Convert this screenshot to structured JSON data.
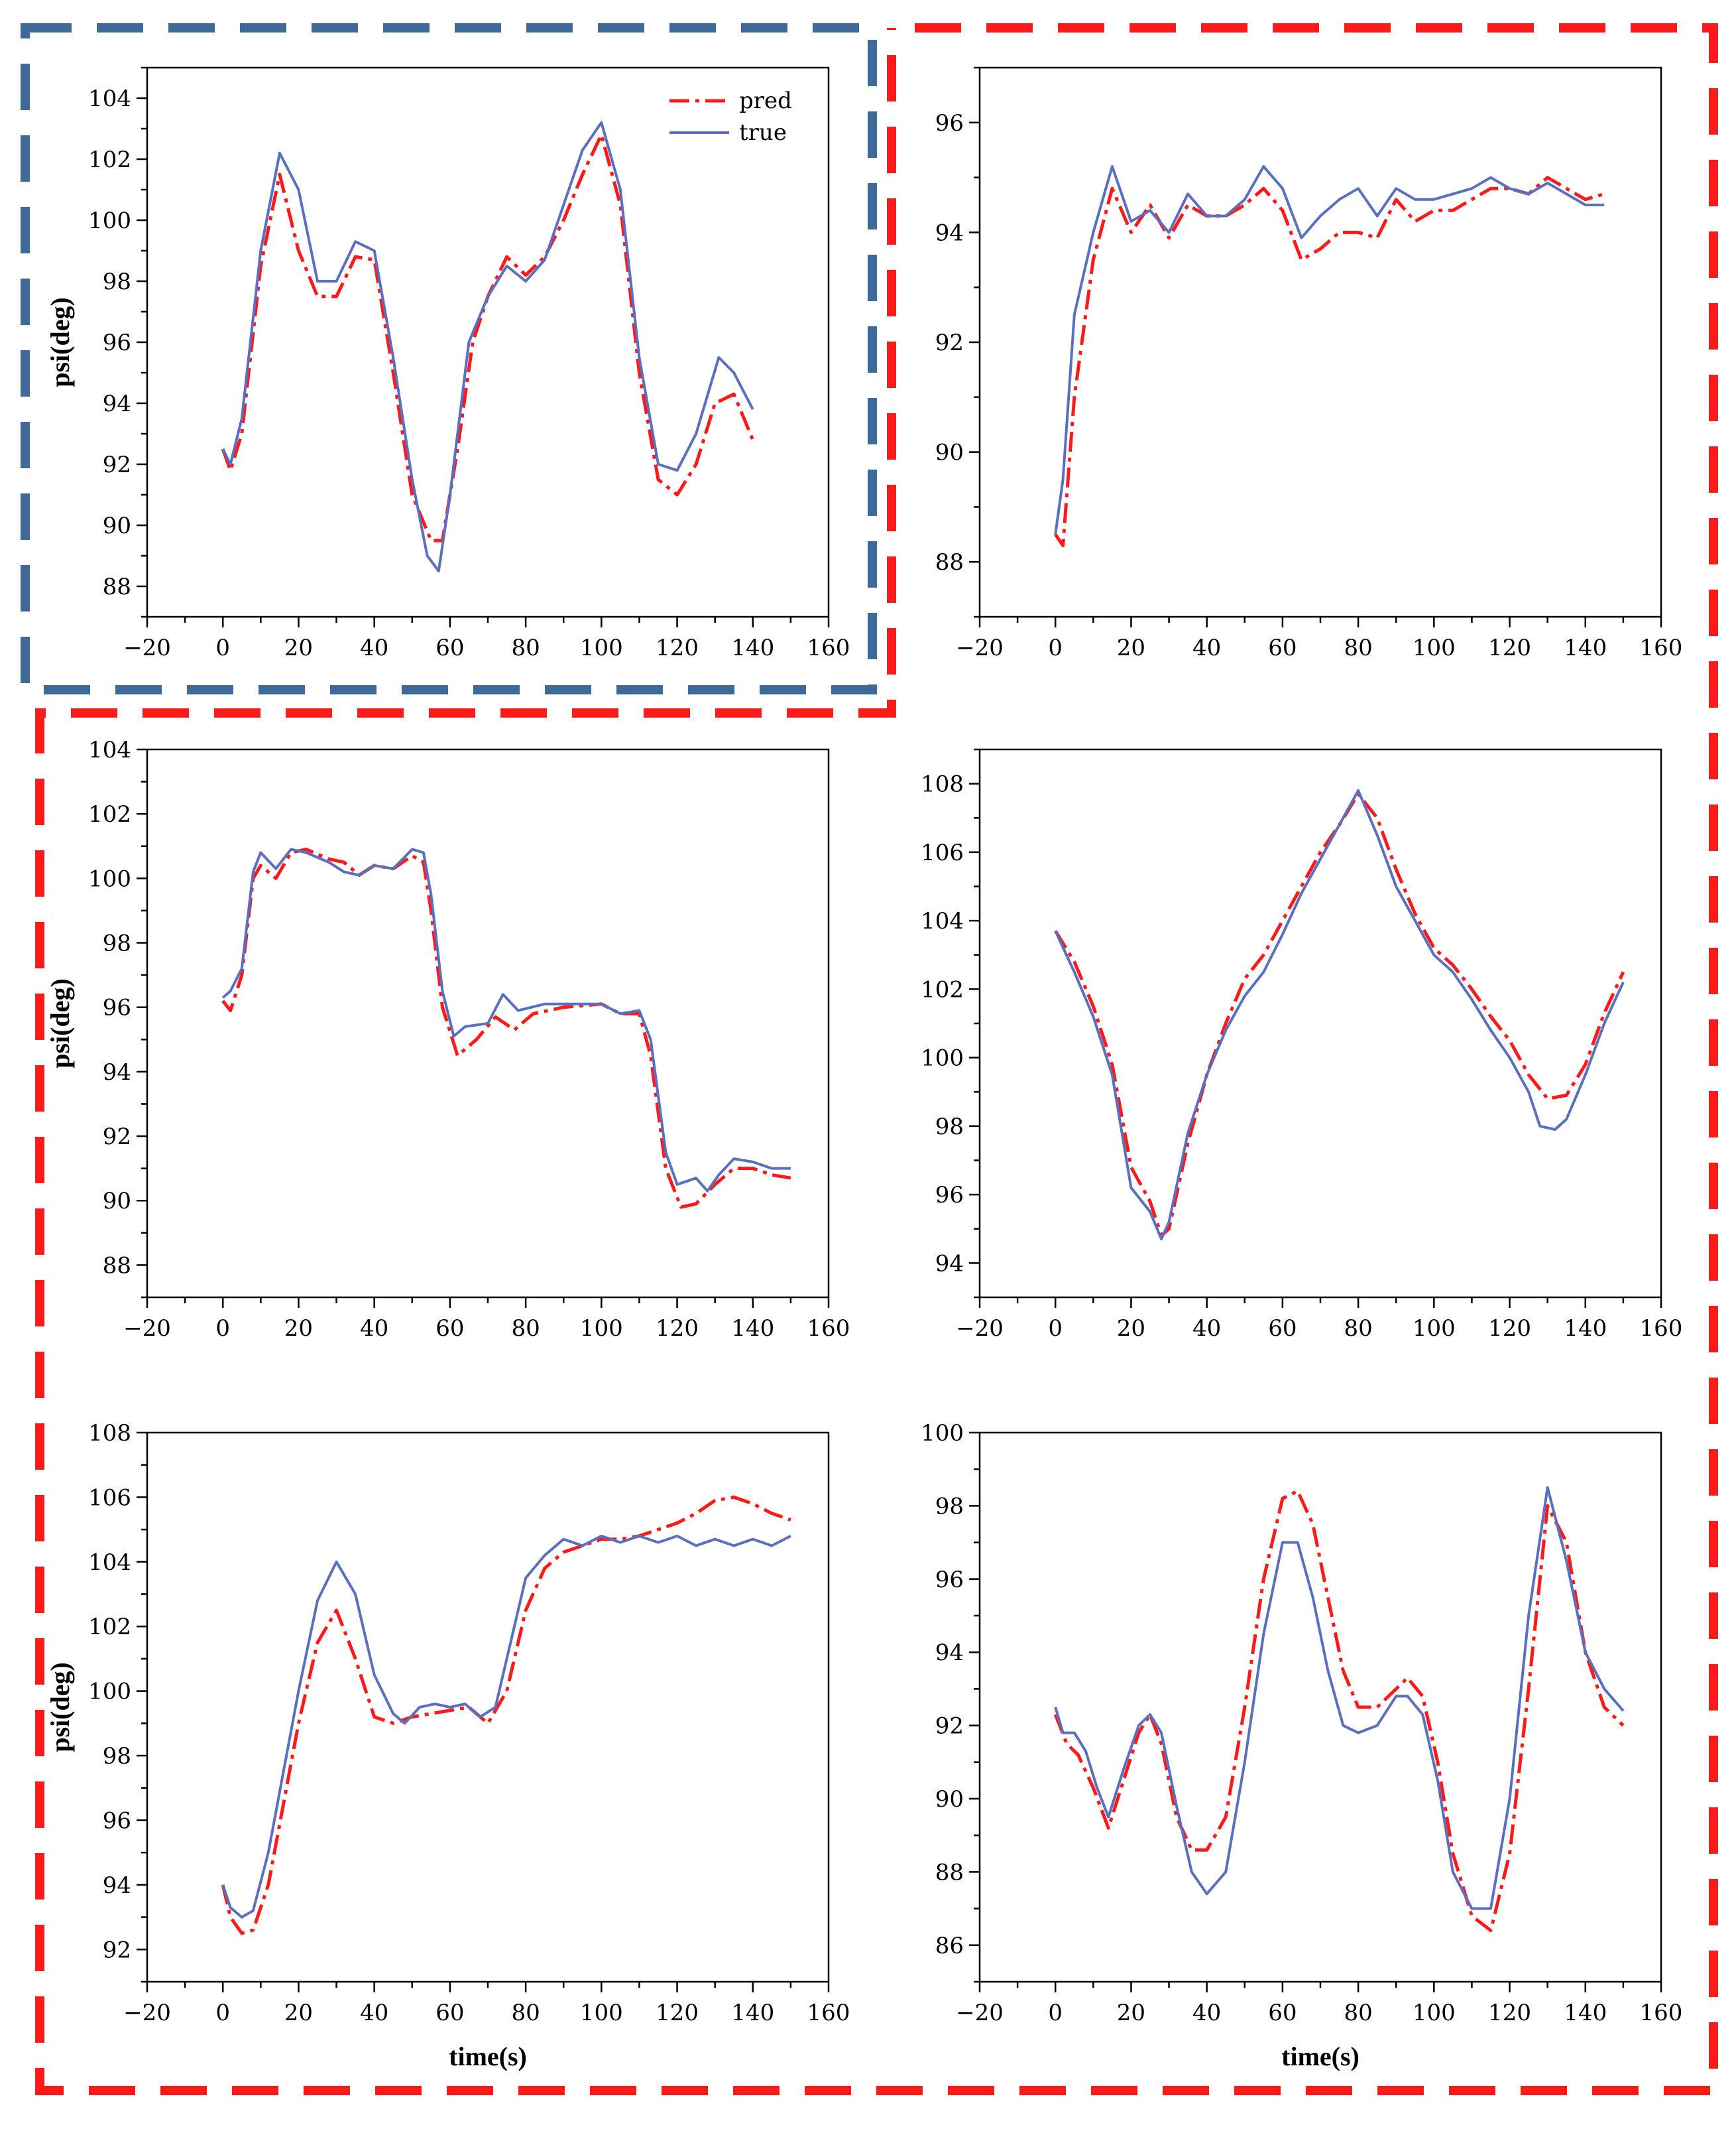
{
  "colors": {
    "pred": "#ff1a1a",
    "true": "#5a6fc0",
    "box_blue": "#3d6a99",
    "box_red": "#ff1a1a"
  },
  "legend": {
    "pred_label": "pred",
    "true_label": "true"
  },
  "chart_data": [
    {
      "type": "line",
      "xlabel": "",
      "ylabel": "psi(deg)",
      "xlim": [
        -20,
        160
      ],
      "ylim": [
        87,
        105
      ],
      "xticks": [
        -20,
        0,
        20,
        40,
        60,
        80,
        100,
        120,
        140,
        160
      ],
      "yticks": [
        88,
        90,
        92,
        94,
        96,
        98,
        100,
        102,
        104
      ],
      "legend": "top-right",
      "series": [
        {
          "name": "pred",
          "x": [
            0,
            2,
            5,
            10,
            15,
            20,
            25,
            30,
            35,
            40,
            45,
            50,
            55,
            58,
            62,
            66,
            70,
            75,
            80,
            85,
            90,
            95,
            100,
            105,
            110,
            115,
            120,
            125,
            130,
            135,
            140
          ],
          "y": [
            92.5,
            91.8,
            93.0,
            98.5,
            101.5,
            99.0,
            97.5,
            97.5,
            98.8,
            98.7,
            95.0,
            91.0,
            89.5,
            89.5,
            92.5,
            96.0,
            97.5,
            98.8,
            98.2,
            98.8,
            100.0,
            101.5,
            102.8,
            100.5,
            95.0,
            91.5,
            91.0,
            92.0,
            94.0,
            94.3,
            92.8
          ]
        },
        {
          "name": "true",
          "x": [
            0,
            2,
            5,
            10,
            15,
            20,
            25,
            30,
            35,
            40,
            45,
            50,
            54,
            57,
            60,
            65,
            70,
            75,
            80,
            85,
            90,
            95,
            100,
            105,
            110,
            115,
            120,
            125,
            131,
            135,
            140
          ],
          "y": [
            92.5,
            92.0,
            93.5,
            99.0,
            102.2,
            101.0,
            98.0,
            98.0,
            99.3,
            99.0,
            95.5,
            91.5,
            89.0,
            88.5,
            91.0,
            96.0,
            97.5,
            98.5,
            98.0,
            98.7,
            100.5,
            102.3,
            103.2,
            101.0,
            95.5,
            92.0,
            91.8,
            93.0,
            95.5,
            95.0,
            93.8
          ]
        }
      ]
    },
    {
      "type": "line",
      "xlabel": "",
      "ylabel": "",
      "xlim": [
        -20,
        160
      ],
      "ylim": [
        87,
        97
      ],
      "xticks": [
        -20,
        0,
        20,
        40,
        60,
        80,
        100,
        120,
        140,
        160
      ],
      "yticks": [
        88,
        90,
        92,
        94,
        96
      ],
      "series": [
        {
          "name": "pred",
          "x": [
            0,
            2,
            5,
            10,
            15,
            20,
            25,
            30,
            35,
            40,
            45,
            50,
            55,
            60,
            65,
            70,
            75,
            80,
            85,
            90,
            95,
            100,
            105,
            110,
            115,
            120,
            125,
            130,
            135,
            140,
            145
          ],
          "y": [
            88.5,
            88.3,
            91.0,
            93.5,
            94.8,
            94.0,
            94.5,
            93.9,
            94.5,
            94.3,
            94.3,
            94.5,
            94.8,
            94.4,
            93.5,
            93.7,
            94.0,
            94.0,
            93.9,
            94.6,
            94.2,
            94.4,
            94.4,
            94.6,
            94.8,
            94.8,
            94.7,
            95.0,
            94.8,
            94.6,
            94.7
          ]
        },
        {
          "name": "true",
          "x": [
            0,
            2,
            5,
            10,
            15,
            20,
            25,
            30,
            35,
            40,
            45,
            50,
            55,
            60,
            65,
            70,
            75,
            80,
            85,
            90,
            95,
            100,
            105,
            110,
            115,
            120,
            125,
            130,
            135,
            140,
            145
          ],
          "y": [
            88.5,
            89.5,
            92.5,
            94.0,
            95.2,
            94.2,
            94.4,
            94.0,
            94.7,
            94.3,
            94.3,
            94.6,
            95.2,
            94.8,
            93.9,
            94.3,
            94.6,
            94.8,
            94.3,
            94.8,
            94.6,
            94.6,
            94.7,
            94.8,
            95.0,
            94.8,
            94.7,
            94.9,
            94.7,
            94.5,
            94.5
          ]
        }
      ]
    },
    {
      "type": "line",
      "xlabel": "",
      "ylabel": "psi(deg)",
      "xlim": [
        -20,
        160
      ],
      "ylim": [
        87,
        104
      ],
      "xticks": [
        -20,
        0,
        20,
        40,
        60,
        80,
        100,
        120,
        140,
        160
      ],
      "yticks": [
        88,
        90,
        92,
        94,
        96,
        98,
        100,
        102,
        104
      ],
      "series": [
        {
          "name": "pred",
          "x": [
            0,
            2,
            5,
            8,
            10,
            14,
            18,
            22,
            28,
            32,
            36,
            40,
            45,
            50,
            53,
            55,
            58,
            62,
            67,
            72,
            77,
            82,
            90,
            100,
            105,
            110,
            113,
            117,
            121,
            125,
            130,
            135,
            140,
            145,
            150
          ],
          "y": [
            96.2,
            95.9,
            97.0,
            100.0,
            100.4,
            100.0,
            100.8,
            100.9,
            100.6,
            100.5,
            100.1,
            100.4,
            100.3,
            100.7,
            100.5,
            99.0,
            96.0,
            94.5,
            95.0,
            95.7,
            95.3,
            95.8,
            96.0,
            96.1,
            95.8,
            95.8,
            94.5,
            91.0,
            89.8,
            89.9,
            90.5,
            91.0,
            91.0,
            90.8,
            90.7
          ]
        },
        {
          "name": "true",
          "x": [
            0,
            2,
            5,
            8,
            10,
            14,
            18,
            22,
            28,
            32,
            36,
            40,
            45,
            50,
            53,
            55,
            58,
            61,
            64,
            70,
            74,
            78,
            85,
            95,
            100,
            105,
            110,
            113,
            117,
            120,
            125,
            128,
            131,
            135,
            140,
            145,
            150
          ],
          "y": [
            96.3,
            96.5,
            97.2,
            100.2,
            100.8,
            100.3,
            100.9,
            100.8,
            100.5,
            100.2,
            100.1,
            100.4,
            100.3,
            100.9,
            100.8,
            99.5,
            96.5,
            95.1,
            95.4,
            95.5,
            96.4,
            95.9,
            96.1,
            96.1,
            96.1,
            95.8,
            95.9,
            95.0,
            91.5,
            90.5,
            90.7,
            90.3,
            90.8,
            91.3,
            91.2,
            91.0,
            91.0
          ]
        }
      ]
    },
    {
      "type": "line",
      "xlabel": "",
      "ylabel": "",
      "xlim": [
        -20,
        160
      ],
      "ylim": [
        93,
        109
      ],
      "xticks": [
        -20,
        0,
        20,
        40,
        60,
        80,
        100,
        120,
        140,
        160
      ],
      "yticks": [
        94,
        96,
        98,
        100,
        102,
        104,
        106,
        108
      ],
      "series": [
        {
          "name": "pred",
          "x": [
            0,
            5,
            10,
            15,
            20,
            25,
            28,
            30,
            35,
            40,
            45,
            50,
            55,
            60,
            65,
            70,
            75,
            80,
            85,
            90,
            95,
            100,
            105,
            110,
            115,
            120,
            125,
            130,
            135,
            140,
            145,
            150
          ],
          "y": [
            103.7,
            102.8,
            101.5,
            99.8,
            96.8,
            95.8,
            94.8,
            95.0,
            97.5,
            99.5,
            101.0,
            102.3,
            103.0,
            104.0,
            105.0,
            106.0,
            106.8,
            107.7,
            107.0,
            105.5,
            104.2,
            103.2,
            102.7,
            102.0,
            101.2,
            100.5,
            99.5,
            98.8,
            98.9,
            99.8,
            101.3,
            102.5
          ]
        },
        {
          "name": "true",
          "x": [
            0,
            5,
            10,
            15,
            20,
            25,
            28,
            30,
            35,
            40,
            45,
            50,
            55,
            60,
            65,
            70,
            75,
            80,
            85,
            90,
            95,
            100,
            105,
            110,
            115,
            120,
            125,
            128,
            132,
            135,
            140,
            145,
            150
          ],
          "y": [
            103.7,
            102.5,
            101.2,
            99.5,
            96.2,
            95.5,
            94.7,
            95.2,
            97.8,
            99.5,
            100.8,
            101.8,
            102.5,
            103.6,
            104.8,
            105.8,
            106.8,
            107.8,
            106.5,
            105.0,
            104.0,
            103.0,
            102.5,
            101.7,
            100.8,
            100.0,
            99.0,
            98.0,
            97.9,
            98.2,
            99.5,
            101.0,
            102.2
          ]
        }
      ]
    },
    {
      "type": "line",
      "xlabel": "time(s)",
      "ylabel": "psi(deg)",
      "xlim": [
        -20,
        160
      ],
      "ylim": [
        91,
        108
      ],
      "xticks": [
        -20,
        0,
        20,
        40,
        60,
        80,
        100,
        120,
        140,
        160
      ],
      "yticks": [
        92,
        94,
        96,
        98,
        100,
        102,
        104,
        106,
        108
      ],
      "series": [
        {
          "name": "pred",
          "x": [
            0,
            2,
            5,
            8,
            12,
            16,
            20,
            25,
            30,
            35,
            40,
            45,
            50,
            55,
            60,
            65,
            70,
            75,
            80,
            85,
            90,
            95,
            100,
            105,
            110,
            115,
            120,
            125,
            130,
            135,
            140,
            145,
            150
          ],
          "y": [
            94.0,
            93.0,
            92.5,
            92.6,
            94.0,
            96.5,
            99.0,
            101.5,
            102.5,
            101.0,
            99.2,
            99.0,
            99.2,
            99.3,
            99.4,
            99.5,
            99.0,
            100.0,
            102.5,
            103.8,
            104.3,
            104.5,
            104.7,
            104.7,
            104.8,
            105.0,
            105.2,
            105.5,
            105.9,
            106.0,
            105.8,
            105.5,
            105.3
          ]
        },
        {
          "name": "true",
          "x": [
            0,
            2,
            5,
            8,
            12,
            16,
            20,
            25,
            30,
            35,
            40,
            45,
            48,
            52,
            56,
            60,
            64,
            68,
            72,
            76,
            80,
            85,
            90,
            95,
            100,
            105,
            110,
            115,
            120,
            125,
            130,
            135,
            140,
            145,
            150
          ],
          "y": [
            94.0,
            93.3,
            93.0,
            93.2,
            95.0,
            97.5,
            100.0,
            102.8,
            104.0,
            103.0,
            100.5,
            99.3,
            99.0,
            99.5,
            99.6,
            99.5,
            99.6,
            99.2,
            99.5,
            101.5,
            103.5,
            104.2,
            104.7,
            104.5,
            104.8,
            104.6,
            104.8,
            104.6,
            104.8,
            104.5,
            104.7,
            104.5,
            104.7,
            104.5,
            104.8
          ]
        }
      ]
    },
    {
      "type": "line",
      "xlabel": "time(s)",
      "ylabel": "",
      "xlim": [
        -20,
        160
      ],
      "ylim": [
        85,
        100
      ],
      "xticks": [
        -20,
        0,
        20,
        40,
        60,
        80,
        100,
        120,
        140,
        160
      ],
      "yticks": [
        86,
        88,
        90,
        92,
        94,
        96,
        98,
        100
      ],
      "series": [
        {
          "name": "pred",
          "x": [
            0,
            3,
            6,
            10,
            14,
            18,
            22,
            25,
            28,
            32,
            36,
            40,
            45,
            50,
            55,
            60,
            64,
            68,
            72,
            76,
            80,
            85,
            90,
            93,
            97,
            101,
            105,
            110,
            115,
            120,
            125,
            130,
            135,
            140,
            145,
            150
          ],
          "y": [
            92.3,
            91.5,
            91.2,
            90.3,
            89.2,
            90.5,
            91.8,
            92.3,
            91.5,
            89.5,
            88.6,
            88.6,
            89.5,
            92.5,
            96.0,
            98.2,
            98.4,
            97.5,
            95.5,
            93.5,
            92.5,
            92.5,
            93.0,
            93.3,
            92.8,
            91.0,
            88.5,
            86.8,
            86.4,
            88.5,
            93.0,
            98.0,
            97.0,
            94.0,
            92.5,
            92.0
          ]
        },
        {
          "name": "true",
          "x": [
            0,
            2,
            5,
            8,
            11,
            14,
            18,
            22,
            25,
            28,
            32,
            36,
            40,
            45,
            50,
            55,
            60,
            64,
            68,
            72,
            76,
            80,
            85,
            90,
            93,
            97,
            101,
            105,
            110,
            115,
            120,
            125,
            130,
            135,
            140,
            145,
            150
          ],
          "y": [
            92.5,
            91.8,
            91.8,
            91.3,
            90.3,
            89.5,
            90.8,
            92.0,
            92.3,
            91.8,
            89.8,
            88.0,
            87.4,
            88.0,
            91.0,
            94.5,
            97.0,
            97.0,
            95.5,
            93.5,
            92.0,
            91.8,
            92.0,
            92.8,
            92.8,
            92.3,
            90.5,
            88.0,
            87.0,
            87.0,
            90.0,
            95.0,
            98.5,
            96.5,
            94.0,
            93.0,
            92.4
          ]
        }
      ]
    }
  ]
}
